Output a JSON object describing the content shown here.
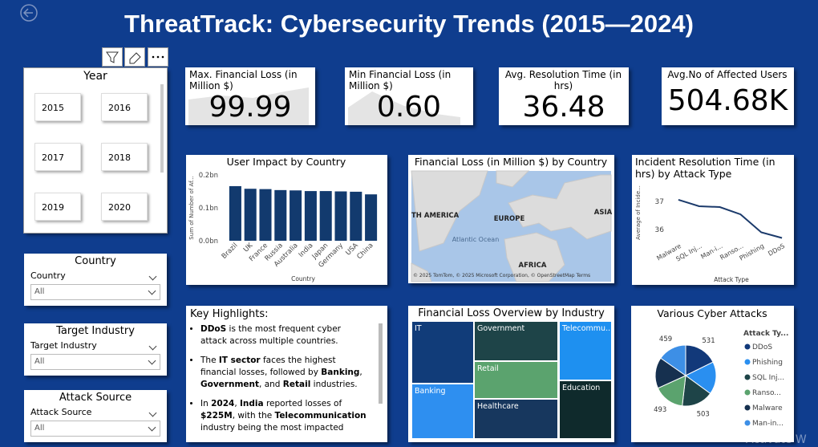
{
  "header": {
    "title": "ThreatTrack: Cybersecurity Trends (2015—2024)"
  },
  "year_slicer": {
    "title": "Year",
    "options": [
      "2015",
      "2016",
      "2017",
      "2018",
      "2019",
      "2020"
    ]
  },
  "filters": [
    {
      "title": "Country",
      "label": "Country",
      "value": "All"
    },
    {
      "title": "Target Industry",
      "label": "Target Industry",
      "value": "All"
    },
    {
      "title": "Attack Source",
      "label": "Attack Source",
      "value": "All"
    }
  ],
  "kpis": [
    {
      "label": "Max. Financial Loss (in Million $)",
      "value": "99.99"
    },
    {
      "label": "Min Financial Loss (in Million $)",
      "value": "0.60"
    },
    {
      "label": "Avg. Resolution Time (in hrs)",
      "value": "36.48"
    },
    {
      "label": "Avg.No of Affected Users",
      "value": "504.68K"
    }
  ],
  "chart_data": [
    {
      "type": "bar",
      "title": "User Impact by Country",
      "x_label": "Country",
      "y_label": "Sum of Number of Af...",
      "categories": [
        "Brazil",
        "UK",
        "France",
        "Russia",
        "Australia",
        "India",
        "Japan",
        "Germany",
        "USA",
        "China"
      ],
      "values": [
        0.166,
        0.158,
        0.157,
        0.154,
        0.153,
        0.151,
        0.151,
        0.15,
        0.149,
        0.141
      ],
      "color": "#123a6e",
      "ylim": [
        0,
        0.2
      ],
      "yticks": [
        {
          "value": 0,
          "label": "0.0bn"
        },
        {
          "value": 0.1,
          "label": "0.1bn"
        },
        {
          "value": 0.2,
          "label": "0.2bn"
        }
      ]
    },
    {
      "type": "line",
      "title": "Incident Resolution Time (in hrs) by Attack Type",
      "x_label": "Attack Type",
      "y_label": "Average of Incide...",
      "categories": [
        "Malware",
        "SQL Inj...",
        "Man-i...",
        "Ranso...",
        "Phishing",
        "DDoS"
      ],
      "values": [
        37.06,
        36.83,
        36.8,
        36.54,
        35.9,
        35.7
      ],
      "color": "#1b3a6b",
      "ylim": [
        35.6,
        37.6
      ],
      "yticks": [
        36,
        37
      ]
    },
    {
      "type": "pie",
      "title": "Various Cyber Attacks",
      "legend_title": "Attack Ty...",
      "categories": [
        "DDoS",
        "Phishing",
        "SQL Inj...",
        "Ranso...",
        "Malware",
        "Man-in..."
      ],
      "values": [
        531,
        520,
        503,
        493,
        494,
        459
      ],
      "colors": [
        "#12397a",
        "#2a8ff0",
        "#1e4448",
        "#5ba36e",
        "#16304f",
        "#3d8fe6"
      ]
    }
  ],
  "map": {
    "title": "Financial Loss (in Million $) by Country",
    "labels": [
      "TH AMERICA",
      "EUROPE",
      "ASIA",
      "Atlantic Ocean",
      "AFRICA"
    ],
    "attribution": "© 2025 TomTom, © 2025 Microsoft Corporation, © OpenStreetMap  Terms"
  },
  "highlights": {
    "title": "Key Highlights:",
    "bullets": [
      [
        {
          "text": "DDoS",
          "bold": true
        },
        {
          "text": " is the most frequent cyber attack across multiple countries."
        }
      ],
      [
        {
          "text": "The "
        },
        {
          "text": "IT sector",
          "bold": true
        },
        {
          "text": " faces the highest financial losses, followed by "
        },
        {
          "text": "Banking",
          "bold": true
        },
        {
          "text": ", "
        },
        {
          "text": "Government",
          "bold": true
        },
        {
          "text": ", and "
        },
        {
          "text": "Retail",
          "bold": true
        },
        {
          "text": " industries."
        }
      ],
      [
        {
          "text": "In "
        },
        {
          "text": "2024",
          "bold": true
        },
        {
          "text": ", "
        },
        {
          "text": "India",
          "bold": true
        },
        {
          "text": " reported losses of "
        },
        {
          "text": "$225M",
          "bold": true
        },
        {
          "text": ", with the "
        },
        {
          "text": "Telecommunication",
          "bold": true
        },
        {
          "text": " industry being the most impacted"
        }
      ]
    ]
  },
  "treemap": {
    "title": "Financial Loss Overview by Industry",
    "tiles": [
      {
        "name": "IT",
        "color": "#113c79"
      },
      {
        "name": "Government",
        "color": "#1e4448"
      },
      {
        "name": "Telecommu...",
        "color": "#1e90f0"
      },
      {
        "name": "Retail",
        "color": "#5ba36e"
      },
      {
        "name": "Banking",
        "color": "#2e8ff0"
      },
      {
        "name": "Healthcare",
        "color": "#17375e"
      },
      {
        "name": "Education",
        "color": "#0f2a2c"
      }
    ]
  },
  "watermark": "Activate W"
}
